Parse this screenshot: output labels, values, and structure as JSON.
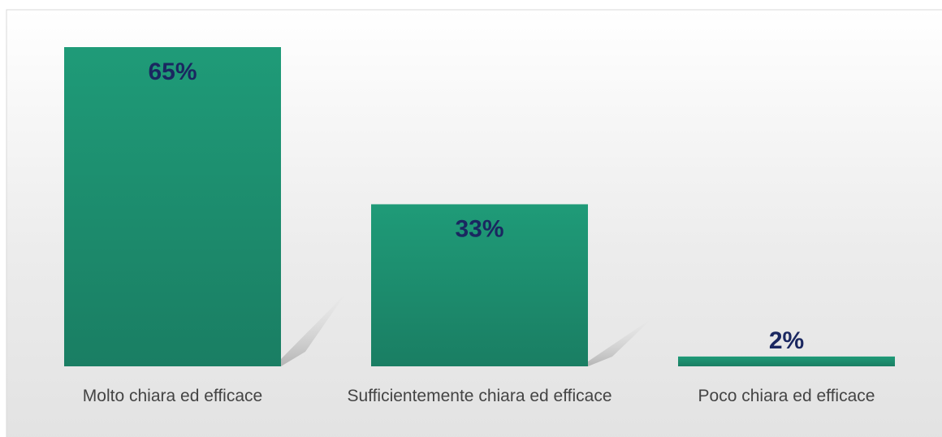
{
  "chart_data": {
    "type": "bar",
    "categories": [
      "Molto chiara ed efficace",
      "Sufficientemente chiara ed efficace",
      "Poco chiara ed efficace"
    ],
    "values": [
      65,
      33,
      2
    ],
    "value_labels": [
      "65%",
      "33%",
      "2%"
    ],
    "color": "#1d9573"
  }
}
